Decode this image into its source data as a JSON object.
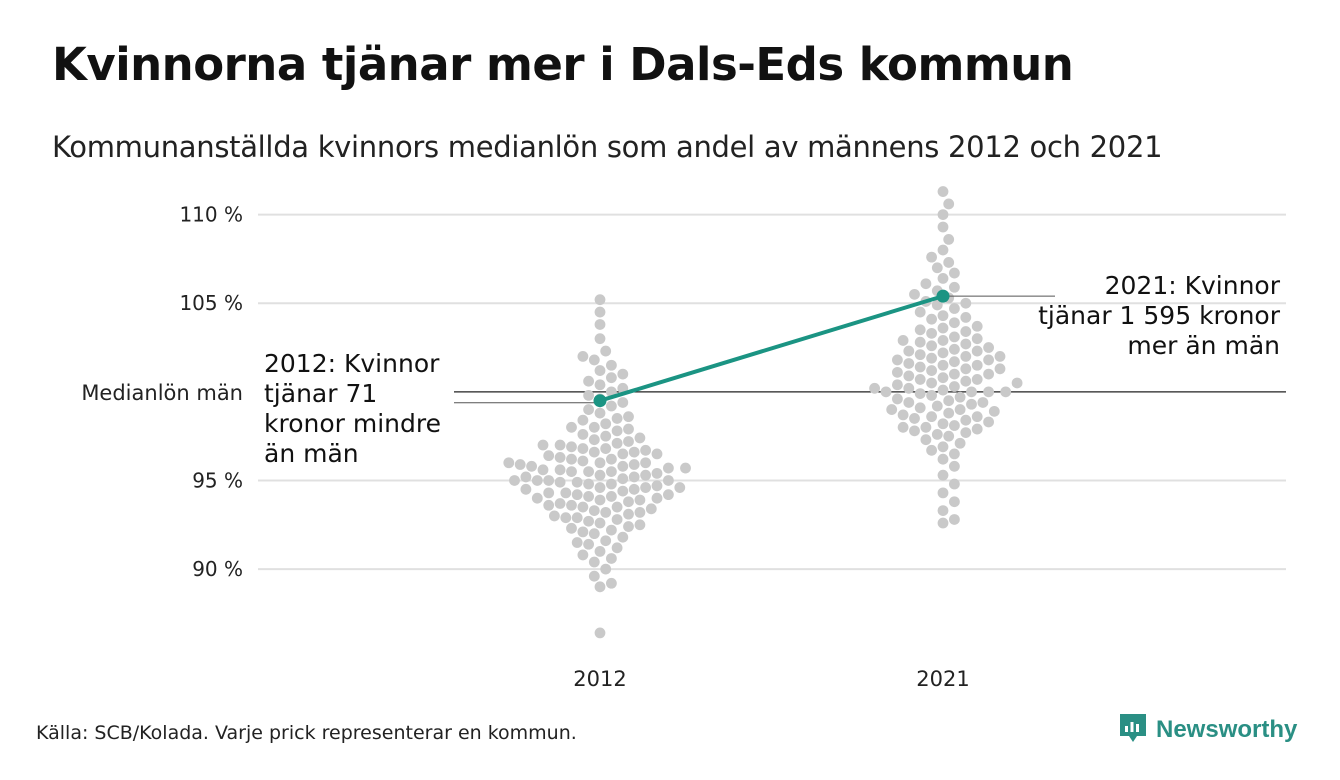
{
  "title": "Kvinnorna tjänar mer i Dals-Eds kommun",
  "subtitle": "Kommunanställda kvinnors medianlön som andel av männens 2012 och 2021",
  "footer": "Källa: SCB/Kolada. Varje prick representerar en kommun.",
  "logo": {
    "text": "Newsworthy",
    "icon": "newsworthy-logo-icon"
  },
  "colors": {
    "accent": "#1b9483",
    "dots": "#c9c9c9",
    "grid": "#e0e0e0",
    "refline": "#222222"
  },
  "chart_data": {
    "type": "scatter",
    "style": "beeswarm",
    "categories": [
      "2012",
      "2021"
    ],
    "ylim": [
      86,
      111.5
    ],
    "yticks": [
      {
        "value": 90,
        "label": "90 %"
      },
      {
        "value": 95,
        "label": "95 %"
      },
      {
        "value": 105,
        "label": "105 %"
      },
      {
        "value": 110,
        "label": "110 %"
      }
    ],
    "reference_line": {
      "value": 100,
      "label": "Medianlön män"
    },
    "grid": true,
    "highlight": {
      "name": "Dals-Ed",
      "values": [
        {
          "category": "2012",
          "value": 99.5
        },
        {
          "category": "2021",
          "value": 105.4
        }
      ]
    },
    "annotations": [
      {
        "category": "2012",
        "lines": [
          "2012: Kvinnor",
          "tjänar 71",
          "kronor mindre",
          "än män"
        ]
      },
      {
        "category": "2021",
        "lines": [
          "2021: Kvinnor",
          "tjänar 1 595 kronor",
          "mer än män"
        ]
      }
    ],
    "distribution_note": "Each grey dot is one municipality; values read from the plot (approximate).",
    "groups": [
      {
        "category": "2012",
        "values": [
          105.2,
          104.5,
          103.8,
          103.0,
          102.3,
          102.0,
          101.8,
          101.5,
          101.2,
          101.0,
          100.8,
          100.6,
          100.4,
          100.2,
          100.0,
          99.8,
          99.6,
          99.4,
          99.2,
          99.0,
          98.8,
          98.6,
          98.5,
          98.4,
          98.2,
          98.0,
          98.0,
          97.8,
          97.6,
          97.5,
          97.4,
          97.2,
          97.1,
          97.0,
          97.0,
          96.9,
          96.8,
          96.7,
          96.6,
          96.5,
          96.5,
          96.4,
          96.3,
          96.2,
          96.1,
          96.0,
          96.0,
          96.0,
          95.9,
          95.8,
          95.8,
          95.7,
          95.6,
          95.5,
          95.5,
          95.5,
          95.4,
          95.3,
          95.2,
          95.2,
          95.1,
          95.0,
          95.0,
          95.0,
          94.9,
          94.8,
          94.8,
          94.7,
          94.6,
          94.5,
          94.5,
          94.4,
          94.3,
          94.2,
          94.2,
          94.1,
          94.1,
          94.0,
          94.0,
          93.9,
          93.8,
          93.7,
          93.6,
          93.5,
          93.5,
          93.4,
          93.3,
          93.2,
          93.1,
          93.0,
          92.9,
          92.8,
          92.7,
          92.6,
          92.5,
          92.4,
          92.3,
          92.2,
          92.1,
          92.0,
          91.8,
          91.6,
          91.5,
          91.4,
          91.2,
          91.0,
          90.8,
          90.6,
          90.4,
          90.0,
          89.6,
          89.2,
          89.0,
          86.4,
          97.3,
          96.6,
          95.9,
          95.3,
          94.6,
          93.9,
          93.2,
          96.2,
          95.6,
          94.9,
          94.3,
          95.0,
          96.8,
          93.6,
          97.9,
          92.9,
          94.6,
          95.7
        ]
      },
      {
        "category": "2021",
        "values": [
          111.3,
          110.6,
          110.0,
          109.3,
          108.6,
          108.0,
          107.6,
          107.3,
          107.0,
          106.7,
          106.4,
          106.1,
          105.9,
          105.7,
          105.5,
          105.3,
          105.1,
          104.9,
          104.7,
          104.5,
          104.3,
          104.1,
          103.9,
          103.7,
          103.5,
          103.3,
          103.1,
          103.0,
          102.9,
          102.8,
          102.7,
          102.6,
          102.5,
          102.4,
          102.3,
          102.2,
          102.1,
          102.0,
          102.0,
          101.9,
          101.8,
          101.7,
          101.6,
          101.5,
          101.5,
          101.4,
          101.3,
          101.2,
          101.1,
          101.0,
          101.0,
          100.9,
          100.8,
          100.7,
          100.6,
          100.5,
          100.5,
          100.4,
          100.3,
          100.2,
          100.1,
          100.0,
          100.0,
          100.0,
          100.0,
          99.9,
          99.8,
          99.7,
          99.6,
          99.5,
          99.4,
          99.3,
          99.2,
          99.1,
          99.0,
          98.9,
          98.8,
          98.7,
          98.6,
          98.5,
          98.4,
          98.3,
          98.2,
          98.1,
          98.0,
          97.9,
          97.8,
          97.7,
          97.6,
          97.5,
          97.3,
          97.1,
          96.9,
          96.7,
          96.5,
          96.2,
          95.8,
          95.3,
          94.8,
          94.3,
          93.8,
          93.3,
          92.8,
          92.6,
          102.9,
          103.6,
          101.8,
          100.7,
          99.4,
          98.6,
          102.3,
          104.2,
          100.2,
          99.0,
          101.3,
          103.4,
          105.0,
          98.0
        ]
      }
    ]
  }
}
